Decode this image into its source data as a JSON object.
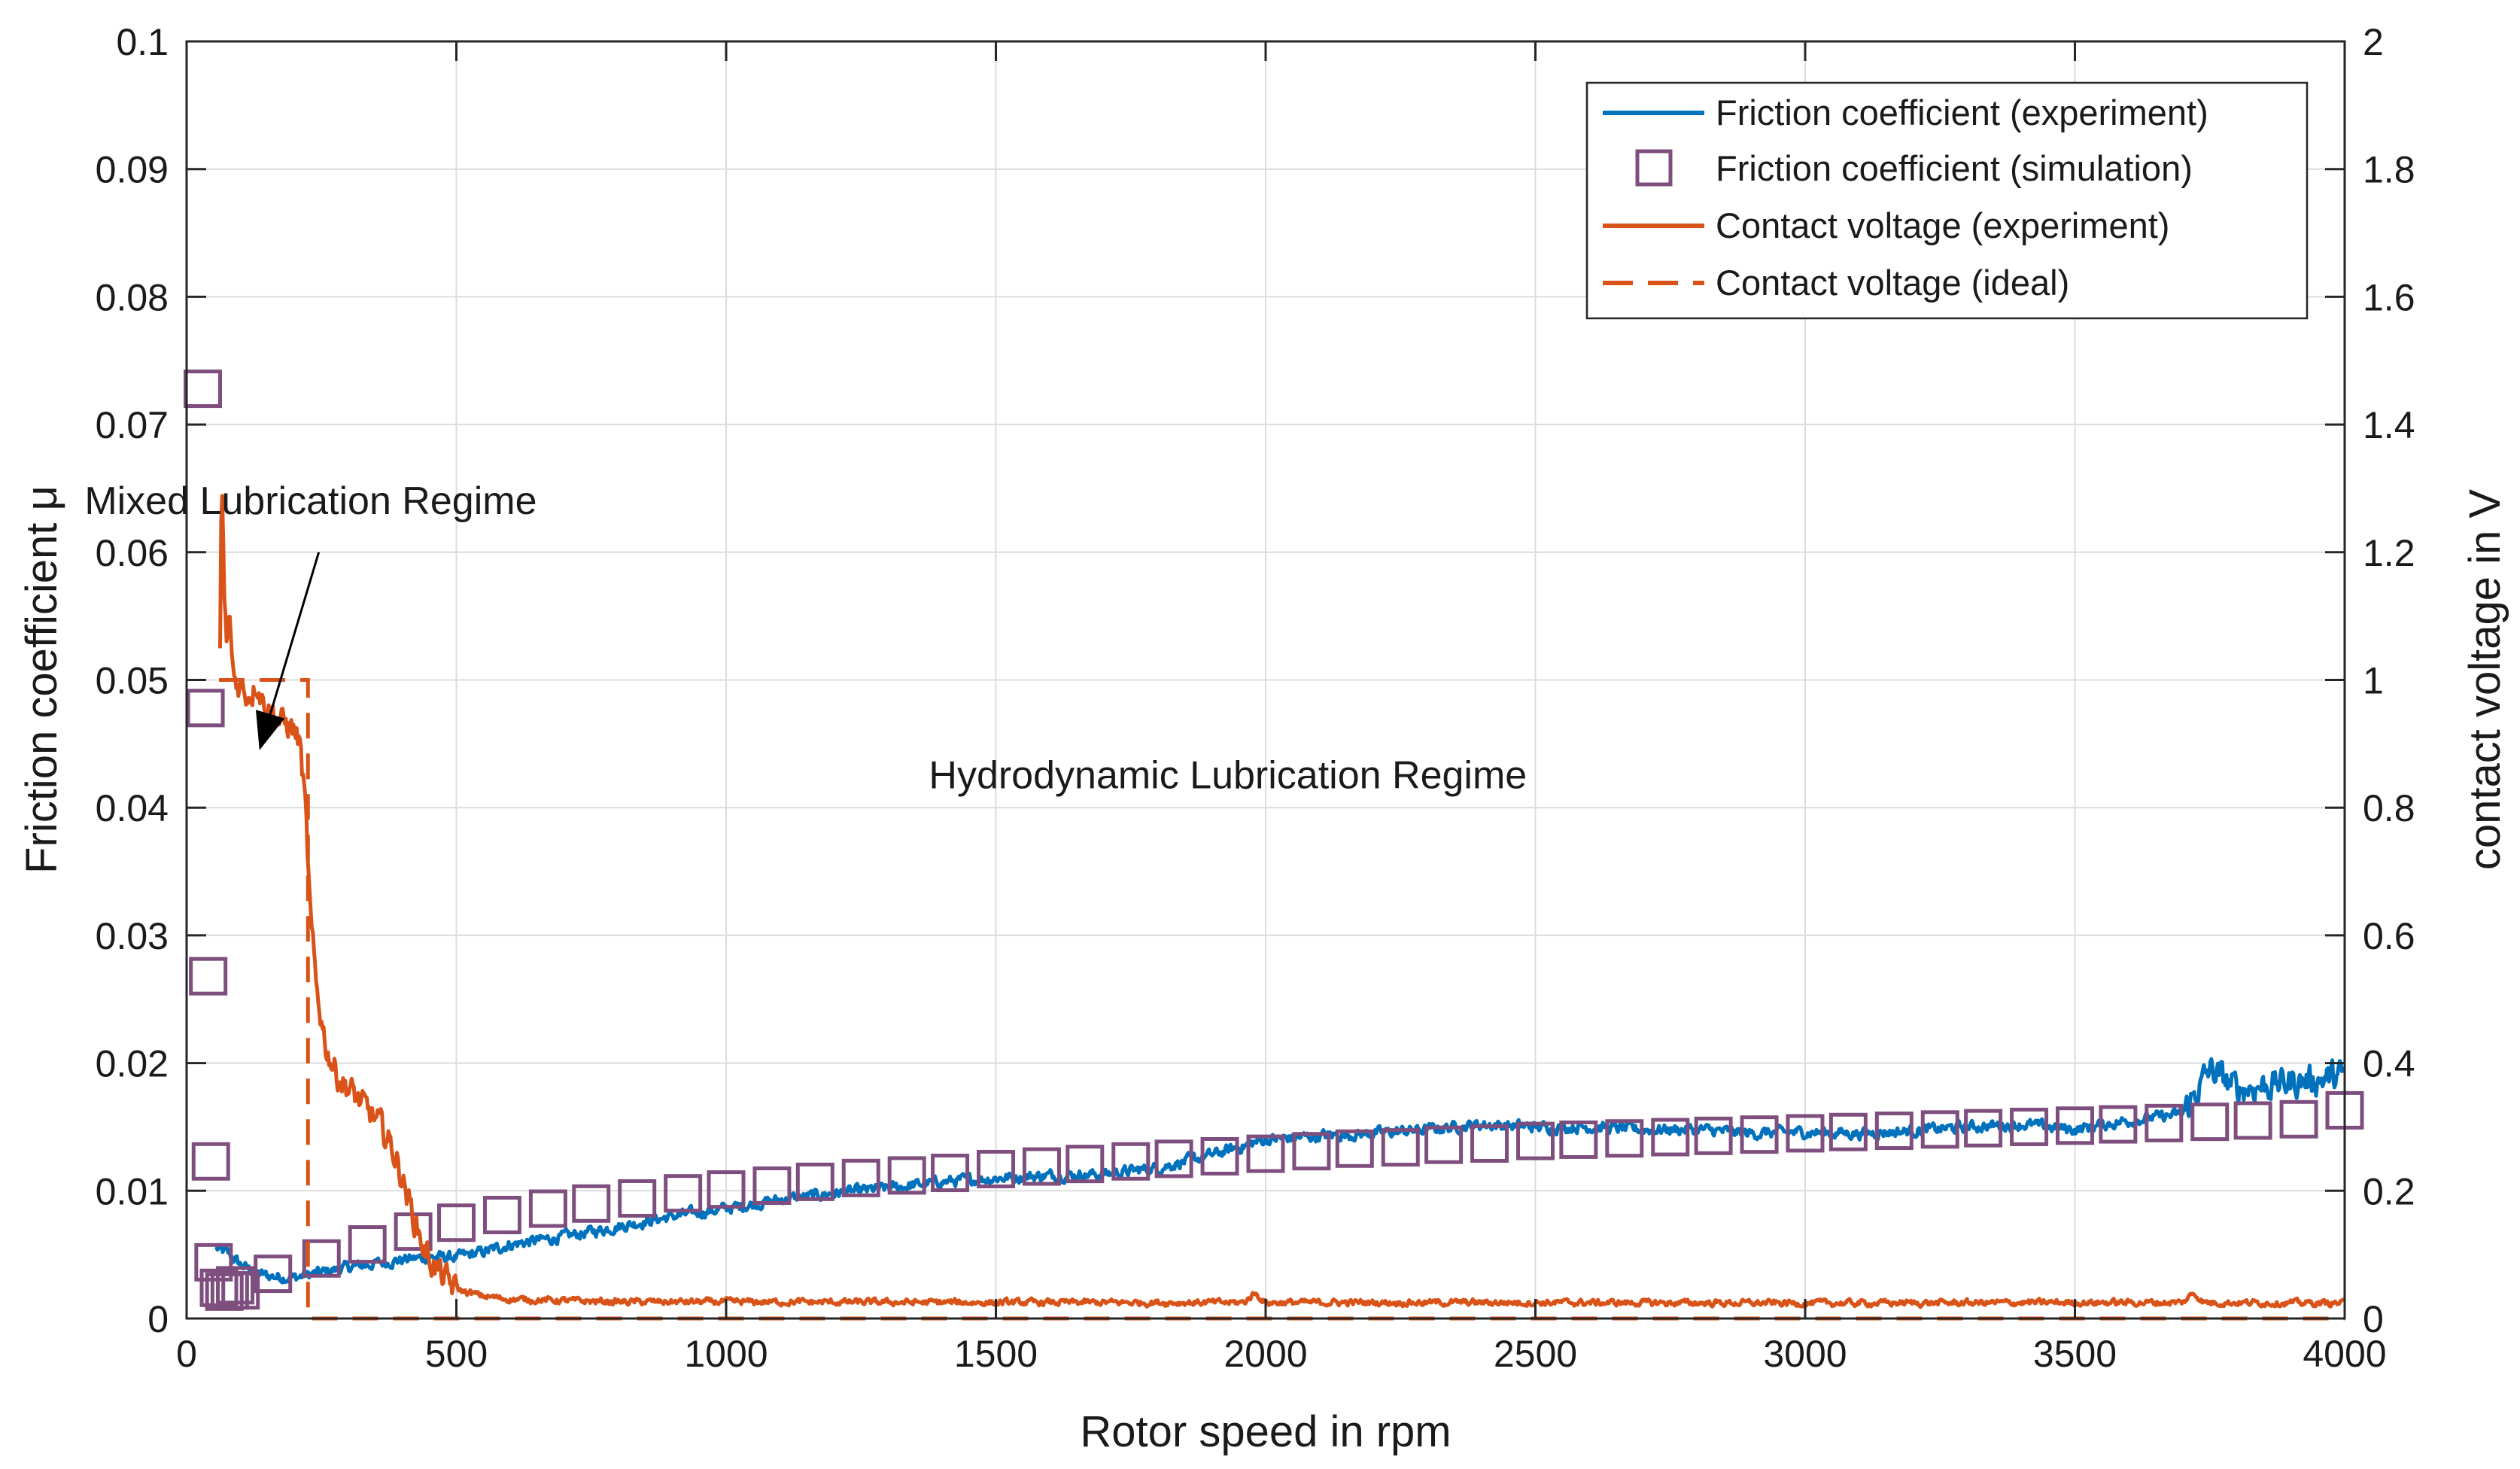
{
  "chart_data": {
    "type": "line",
    "xlabel": "Rotor speed in rpm",
    "ylabel_left": "Friction coefficient μ",
    "ylabel_right": "contact voltage in V",
    "xlim": [
      0,
      4000
    ],
    "ylim_left": [
      0,
      0.1
    ],
    "ylim_right": [
      0,
      2
    ],
    "grid": true,
    "legend_position": "top-right",
    "x_ticks": [
      0,
      500,
      1000,
      1500,
      2000,
      2500,
      3000,
      3500,
      4000
    ],
    "x_tick_labels": [
      "0",
      "500",
      "1000",
      "1500",
      "2000",
      "2500",
      "3000",
      "3500",
      "4000"
    ],
    "y_left_ticks": [
      0,
      0.01,
      0.02,
      0.03,
      0.04,
      0.05,
      0.06,
      0.07,
      0.08,
      0.09,
      0.1
    ],
    "y_left_tick_labels": [
      "0",
      "0.01",
      "0.02",
      "0.03",
      "0.04",
      "0.05",
      "0.06",
      "0.07",
      "0.08",
      "0.09",
      "0.1"
    ],
    "y_right_ticks": [
      0,
      0.2,
      0.4,
      0.6,
      0.8,
      1,
      1.2,
      1.4,
      1.6,
      1.8,
      2
    ],
    "y_right_tick_labels": [
      "0",
      "0.2",
      "0.4",
      "0.6",
      "0.8",
      "1",
      "1.2",
      "1.4",
      "1.6",
      "1.8",
      "2"
    ],
    "series": [
      {
        "name": "Friction coefficient (experiment)",
        "axis": "left",
        "style": "solid-line",
        "color": "#0072BD",
        "x": [
          55,
          80,
          100,
          130,
          160,
          200,
          250,
          300,
          350,
          400,
          450,
          500,
          550,
          600,
          700,
          800,
          900,
          1000,
          1100,
          1200,
          1300,
          1400,
          1500,
          1600,
          1700,
          1800,
          1900,
          2000,
          2100,
          2200,
          2300,
          2400,
          2500,
          2600,
          2700,
          2800,
          2900,
          3000,
          3100,
          3200,
          3300,
          3400,
          3500,
          3600,
          3700,
          3750,
          3800,
          3900,
          4000
        ],
        "y": [
          0.0055,
          0.005,
          0.0042,
          0.0035,
          0.0033,
          0.0032,
          0.0036,
          0.004,
          0.0043,
          0.0046,
          0.0048,
          0.0048,
          0.0052,
          0.0058,
          0.0064,
          0.0072,
          0.008,
          0.0086,
          0.0093,
          0.0098,
          0.0102,
          0.0107,
          0.011,
          0.0112,
          0.0113,
          0.0118,
          0.0128,
          0.014,
          0.0143,
          0.0145,
          0.0148,
          0.0152,
          0.015,
          0.015,
          0.0148,
          0.0148,
          0.0145,
          0.0146,
          0.0145,
          0.0147,
          0.015,
          0.0152,
          0.0148,
          0.0155,
          0.016,
          0.0195,
          0.018,
          0.0185,
          0.019
        ]
      },
      {
        "name": "Friction coefficient (simulation)",
        "axis": "left",
        "style": "square-markers",
        "color": "#7E4E7F",
        "x": [
          30,
          35,
          40,
          45,
          50,
          60,
          70,
          80,
          90,
          100,
          160,
          250,
          335,
          420,
          500,
          585,
          670,
          750,
          835,
          920,
          1000,
          1085,
          1165,
          1250,
          1335,
          1415,
          1500,
          1585,
          1665,
          1750,
          1830,
          1915,
          2000,
          2085,
          2165,
          2250,
          2330,
          2415,
          2500,
          2580,
          2665,
          2750,
          2830,
          2915,
          3000,
          3080,
          3165,
          3250,
          3330,
          3415,
          3500,
          3580,
          3665,
          3750,
          3830,
          3915,
          4000
        ],
        "y": [
          0.0728,
          0.0478,
          0.0268,
          0.0123,
          0.0044,
          0.0024,
          0.0021,
          0.0022,
          0.0026,
          0.0022,
          0.0035,
          0.0047,
          0.0058,
          0.0068,
          0.0075,
          0.0081,
          0.0086,
          0.009,
          0.0094,
          0.0098,
          0.0101,
          0.0104,
          0.0107,
          0.011,
          0.0112,
          0.0114,
          0.0117,
          0.0119,
          0.0121,
          0.0123,
          0.0125,
          0.0127,
          0.0129,
          0.0131,
          0.0133,
          0.0134,
          0.0136,
          0.0137,
          0.0139,
          0.014,
          0.0141,
          0.0142,
          0.0143,
          0.0144,
          0.0145,
          0.0146,
          0.0147,
          0.0148,
          0.0149,
          0.015,
          0.0151,
          0.0152,
          0.0153,
          0.0154,
          0.0155,
          0.0156,
          0.0163
        ]
      },
      {
        "name": "Contact voltage (experiment)",
        "axis": "right",
        "style": "solid-line",
        "color": "#D95319",
        "x": [
          62,
          65,
          70,
          75,
          80,
          85,
          90,
          100,
          110,
          120,
          130,
          140,
          150,
          160,
          170,
          180,
          190,
          200,
          210,
          220,
          230,
          240,
          260,
          280,
          300,
          320,
          340,
          360,
          380,
          400,
          420,
          440,
          460,
          480,
          500,
          550,
          600,
          700,
          800,
          1000,
          1500,
          1960,
          1980,
          2000,
          2500,
          3000,
          3500,
          3700,
          3720,
          3740,
          4000
        ],
        "y": [
          1.05,
          1.33,
          1.12,
          1.05,
          1.1,
          1.02,
          1.0,
          0.99,
          0.98,
          0.98,
          1.0,
          0.97,
          0.96,
          0.95,
          0.94,
          0.93,
          0.93,
          0.92,
          0.9,
          0.8,
          0.62,
          0.52,
          0.42,
          0.38,
          0.36,
          0.34,
          0.32,
          0.3,
          0.27,
          0.22,
          0.16,
          0.11,
          0.08,
          0.06,
          0.045,
          0.035,
          0.03,
          0.028,
          0.026,
          0.026,
          0.025,
          0.025,
          0.04,
          0.025,
          0.025,
          0.024,
          0.025,
          0.025,
          0.04,
          0.025,
          0.024
        ]
      },
      {
        "name": "Contact voltage (ideal)",
        "axis": "right",
        "style": "dashed-line",
        "color": "#D95319",
        "x": [
          60,
          225,
          225,
          4000
        ],
        "y": [
          1.0,
          1.0,
          0.0,
          0.0
        ]
      }
    ],
    "annotations": [
      {
        "text": "Mixed Lubrication Regime",
        "x": 230,
        "y": 1.26,
        "axis": "right"
      },
      {
        "text": "Hydrodynamic Lubrication Regime",
        "x": 1930,
        "y": 0.83,
        "axis": "right"
      }
    ],
    "arrow": {
      "from_x": 245,
      "from_y": 1.2,
      "to_x": 135,
      "to_y": 0.89,
      "axis": "right"
    }
  }
}
